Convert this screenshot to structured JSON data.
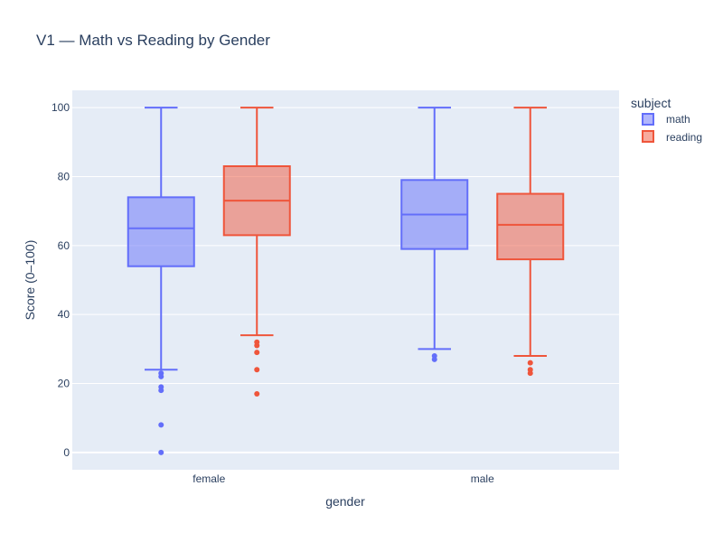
{
  "chart_data": {
    "type": "box",
    "title": "V1 — Math vs Reading by Gender",
    "xlabel": "gender",
    "ylabel": "Score (0–100)",
    "categories": [
      "female",
      "male"
    ],
    "ylim": [
      -5,
      105
    ],
    "yticks": [
      0,
      20,
      40,
      60,
      80,
      100
    ],
    "grid": true,
    "legend": {
      "title": "subject",
      "placement": "top-right"
    },
    "series": [
      {
        "name": "math",
        "color": "#636efa",
        "fill": "rgba(99,110,250,0.5)",
        "boxes": [
          {
            "category": "female",
            "min": 24,
            "q1": 54,
            "median": 65,
            "q3": 74,
            "max": 100,
            "outliers": [
              0,
              8,
              18,
              19,
              22,
              23
            ]
          },
          {
            "category": "male",
            "min": 30,
            "q1": 59,
            "median": 69,
            "q3": 79,
            "max": 100,
            "outliers": [
              27,
              28
            ]
          }
        ]
      },
      {
        "name": "reading",
        "color": "#ef553b",
        "fill": "rgba(239,85,59,0.5)",
        "boxes": [
          {
            "category": "female",
            "min": 34,
            "q1": 63,
            "median": 73,
            "q3": 83,
            "max": 100,
            "outliers": [
              17,
              24,
              29,
              31,
              32
            ]
          },
          {
            "category": "male",
            "min": 28,
            "q1": 56,
            "median": 66,
            "q3": 75,
            "max": 100,
            "outliers": [
              23,
              24,
              26
            ]
          }
        ]
      }
    ]
  }
}
